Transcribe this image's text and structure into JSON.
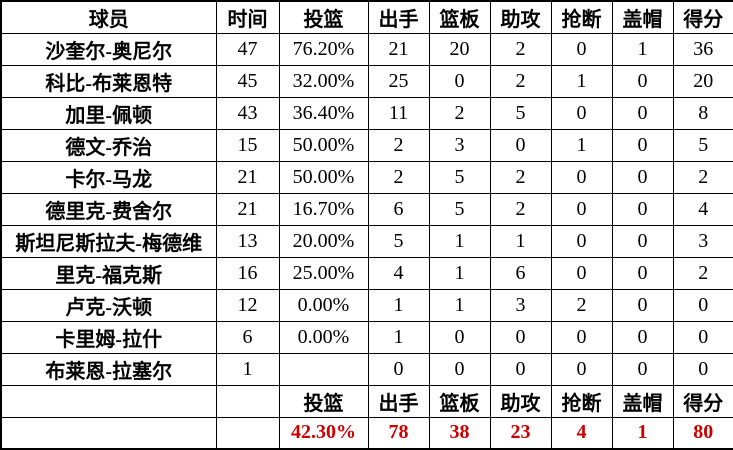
{
  "colors": {
    "border": "#000000",
    "text": "#000000",
    "background": "#ffffff",
    "totals_text": "#cc0000"
  },
  "chart_data": {
    "type": "table",
    "title": "",
    "columns": [
      "球员",
      "时间",
      "投篮",
      "出手",
      "篮板",
      "助攻",
      "抢断",
      "盖帽",
      "得分"
    ],
    "column_keys": [
      "player",
      "minutes",
      "fg-pct",
      "attempts",
      "rebounds",
      "assists",
      "steals",
      "blocks",
      "points"
    ],
    "rows": [
      [
        "沙奎尔-奥尼尔",
        "47",
        "76.20%",
        "21",
        "20",
        "2",
        "0",
        "1",
        "36"
      ],
      [
        "科比-布莱恩特",
        "45",
        "32.00%",
        "25",
        "0",
        "2",
        "1",
        "0",
        "20"
      ],
      [
        "加里-佩顿",
        "43",
        "36.40%",
        "11",
        "2",
        "5",
        "0",
        "0",
        "8"
      ],
      [
        "德文-乔治",
        "15",
        "50.00%",
        "2",
        "3",
        "0",
        "1",
        "0",
        "5"
      ],
      [
        "卡尔-马龙",
        "21",
        "50.00%",
        "2",
        "5",
        "2",
        "0",
        "0",
        "2"
      ],
      [
        "德里克-费舍尔",
        "21",
        "16.70%",
        "6",
        "5",
        "2",
        "0",
        "0",
        "4"
      ],
      [
        "斯坦尼斯拉夫-梅德维",
        "13",
        "20.00%",
        "5",
        "1",
        "1",
        "0",
        "0",
        "3"
      ],
      [
        "里克-福克斯",
        "16",
        "25.00%",
        "4",
        "1",
        "6",
        "0",
        "0",
        "2"
      ],
      [
        "卢克-沃顿",
        "12",
        "0.00%",
        "1",
        "1",
        "3",
        "2",
        "0",
        "0"
      ],
      [
        "卡里姆-拉什",
        "6",
        "0.00%",
        "1",
        "0",
        "0",
        "0",
        "0",
        "0"
      ],
      [
        "布莱恩-拉塞尔",
        "1",
        "",
        "0",
        "0",
        "0",
        "0",
        "0",
        "0"
      ]
    ],
    "summary_label_row": [
      "",
      "",
      "投篮",
      "出手",
      "篮板",
      "助攻",
      "抢断",
      "盖帽",
      "得分"
    ],
    "totals_row": [
      "",
      "",
      "42.30%",
      "78",
      "38",
      "23",
      "4",
      "1",
      "80"
    ]
  }
}
